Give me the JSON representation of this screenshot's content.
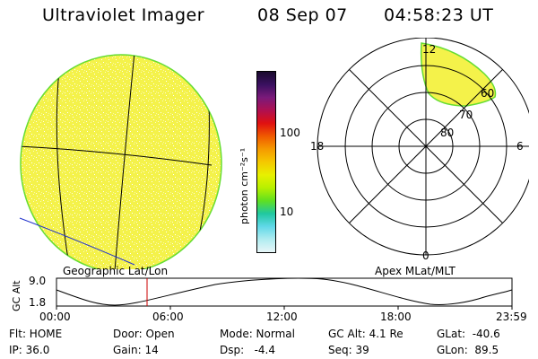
{
  "header": {
    "instrument": "Ultraviolet Imager",
    "date": "08 Sep 07",
    "time": "04:58:23 UT"
  },
  "colorbar": {
    "unit_label": "photon cm⁻²s⁻¹",
    "ticks": [
      "100",
      "10"
    ],
    "colors": [
      "#1a0a2e",
      "#3a1060",
      "#7a1a7a",
      "#b01050",
      "#e01010",
      "#f05a00",
      "#f59a00",
      "#f5c800",
      "#e8f000",
      "#b8f000",
      "#60e020",
      "#20c8a0",
      "#60d8e8",
      "#b0ecf0",
      "#e8f6f8"
    ]
  },
  "left_panel": {
    "label": "Geographic Lat/Lon",
    "disk_fill": "#f4f24a",
    "disk_edge": "#66dd33"
  },
  "right_panel": {
    "label": "Apex MLat/MLT",
    "mlt_labels": {
      "top": "12",
      "right": "6",
      "bottom": "0",
      "left": "18"
    },
    "lat_labels": [
      "60",
      "70",
      "80"
    ],
    "coverage_fill": "#f4f24a",
    "coverage_edge": "#66dd33"
  },
  "altitude_plot": {
    "ylabel": "GC Alt",
    "yticks": [
      "9.0",
      "1.8"
    ],
    "xticks": [
      "00:00",
      "06:00",
      "12:00",
      "18:00",
      "23:59"
    ],
    "current_time_marker_color": "#cc0000"
  },
  "status": {
    "flt": "Flt: HOME",
    "ip": "IP: 36.0",
    "door": "Door: Open",
    "gain": "Gain: 14",
    "mode": "Mode: Normal",
    "dsp": "Dsp:   -4.4",
    "gcalt": "GC Alt: 4.1 Re",
    "seq": "Seq: 39",
    "glat": "GLat:  -40.6",
    "glon": "GLon:  89.5"
  }
}
